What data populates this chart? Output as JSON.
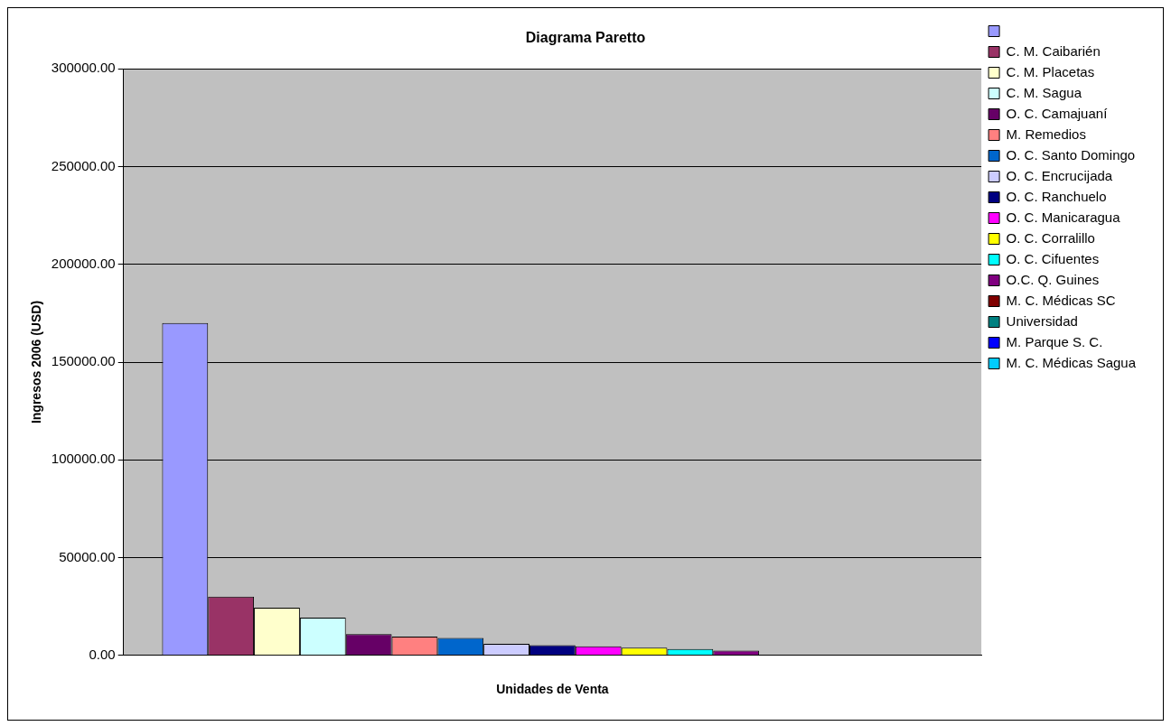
{
  "chart_data": {
    "type": "bar",
    "title": "Diagrama Paretto",
    "xlabel": "Unidades de Venta",
    "ylabel": "Ingresos 2006 (USD)",
    "categories": [
      null
    ],
    "series": [
      {
        "color": "#9999ff",
        "values": [
          170000
        ]
      },
      {
        "name": "C. M. Caibarién",
        "color": "#993366",
        "values": [
          30000
        ]
      },
      {
        "name": "C. M. Placetas",
        "color": "#ffffcc",
        "values": [
          24400
        ]
      },
      {
        "name": "C. M. Sagua",
        "color": "#ccffff",
        "values": [
          19300
        ]
      },
      {
        "name": "O. C. Camajuaní",
        "color": "#660066",
        "values": [
          10900
        ]
      },
      {
        "name": "M. Remedios",
        "color": "#ff8080",
        "values": [
          9600
        ]
      },
      {
        "name": "O. C. Santo Domingo",
        "color": "#0066cc",
        "values": [
          8900
        ]
      },
      {
        "name": "O. C. Encrucijada",
        "color": "#ccccff",
        "values": [
          5900
        ]
      },
      {
        "name": "O. C. Ranchuelo",
        "color": "#000080",
        "values": [
          5200
        ]
      },
      {
        "name": "O. C. Manicaragua",
        "color": "#ff00ff",
        "values": [
          4600
        ]
      },
      {
        "name": "O. C. Corralillo",
        "color": "#ffff00",
        "values": [
          3900
        ]
      },
      {
        "name": "O. C. Cifuentes",
        "color": "#00ffff",
        "values": [
          3300
        ]
      },
      {
        "name": "O.C. Q. Guines",
        "color": "#800080",
        "values": [
          2400
        ]
      },
      {
        "name": "M. C. Médicas SC",
        "color": "#800000",
        "values": [
          null
        ]
      },
      {
        "name": "Universidad",
        "color": "#008080",
        "values": [
          null
        ]
      },
      {
        "name": "M. Parque S. C.",
        "color": "#0000ff",
        "values": [
          null
        ]
      },
      {
        "name": "M. C. Médicas Sagua",
        "color": "#00ccff",
        "values": [
          null
        ]
      }
    ],
    "ylim": [
      0,
      300000
    ],
    "yticks": [
      {
        "value": 0,
        "label": "0.00"
      },
      {
        "value": 50000,
        "label": "50000.00"
      },
      {
        "value": 100000,
        "label": "100000.00"
      },
      {
        "value": 150000,
        "label": "150000.00"
      },
      {
        "value": 200000,
        "label": "200000.00"
      },
      {
        "value": 250000,
        "label": "250000.00"
      },
      {
        "value": 300000,
        "label": "300000.00"
      }
    ],
    "grid": "y",
    "legend": "right"
  }
}
